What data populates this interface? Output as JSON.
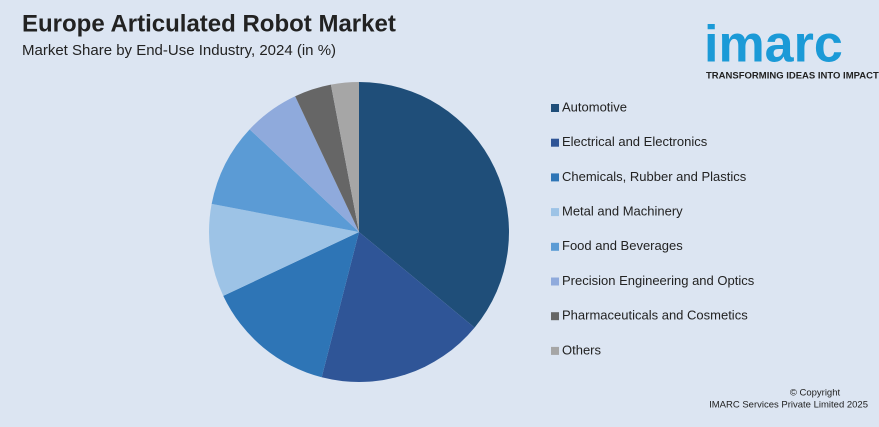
{
  "chart_data": {
    "type": "pie",
    "title": "Europe Articulated Robot Market",
    "subtitle": "Market Share by End-Use Industry, 2024 (in %)",
    "categories": [
      "Automotive",
      "Electrical and Electronics",
      "Chemicals, Rubber and Plastics",
      "Metal and Machinery",
      "Food and Beverages",
      "Precision Engineering and Optics",
      "Pharmaceuticals and Cosmetics",
      "Others"
    ],
    "values": [
      36,
      18,
      14,
      10,
      9,
      6,
      4,
      3
    ],
    "colors": [
      "#1f4e79",
      "#2f5597",
      "#2e75b6",
      "#9dc3e6",
      "#5b9bd5",
      "#8faadc",
      "#666666",
      "#a6a6a6"
    ],
    "legend": "right"
  },
  "logo": {
    "name": "imarc",
    "tagline": "TRANSFORMING IDEAS INTO IMPACT"
  },
  "footer": [
    "© Copyright",
    "IMARC Services Private Limited 2025"
  ]
}
